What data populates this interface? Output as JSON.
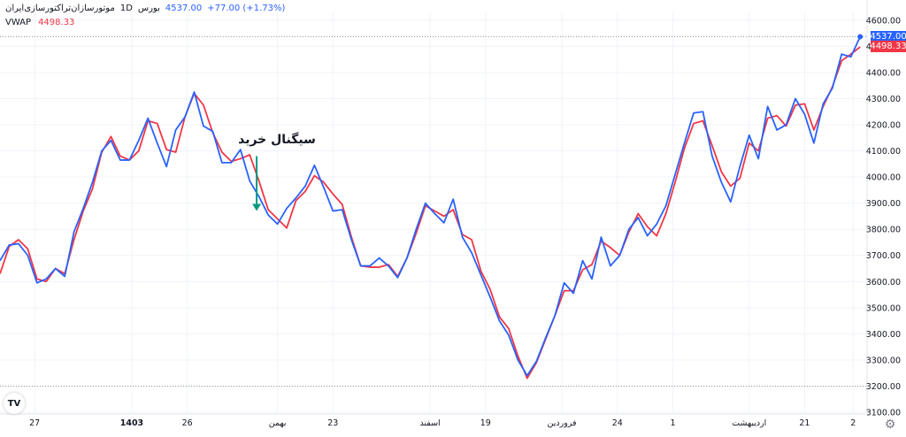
{
  "header": {
    "symbol_name": "موتورسازان‌تراکتورسازی‌ایران",
    "interval": "1D",
    "exchange": "بورس",
    "last_price": "4537.00",
    "change": "+77.00 (+1.73%)"
  },
  "indicator": {
    "label": "VWAP",
    "value": "4498.33"
  },
  "price_badge": "4537.00",
  "vwap_badge": "4498.33",
  "annotation": {
    "text": "سیگنال خرید",
    "x": 18.5,
    "y": 4080,
    "arrow_to_y": 3870
  },
  "colors": {
    "price": "#2962ff",
    "vwap": "#f23645",
    "annotation_arrow": "#089981"
  },
  "logo_text": "TV",
  "chart_data": {
    "type": "line",
    "x_tick_labels": [
      {
        "x": 2.5,
        "label": "27"
      },
      {
        "x": 9.5,
        "label": "1403"
      },
      {
        "x": 13.5,
        "label": "26"
      },
      {
        "x": 20,
        "label": "بهمن"
      },
      {
        "x": 24,
        "label": "23"
      },
      {
        "x": 31,
        "label": "اسفند"
      },
      {
        "x": 35,
        "label": "19"
      },
      {
        "x": 40.5,
        "label": "فروردین"
      },
      {
        "x": 44.5,
        "label": "24"
      },
      {
        "x": 48.5,
        "label": "1"
      },
      {
        "x": 54,
        "label": "اردیبهشت"
      },
      {
        "x": 58,
        "label": "21"
      },
      {
        "x": 61.5,
        "label": "2"
      }
    ],
    "y_ticks": [
      3100,
      3200,
      3300,
      3400,
      3500,
      3600,
      3700,
      3800,
      3900,
      4000,
      4100,
      4200,
      4300,
      4400,
      4500,
      4600
    ],
    "ylim": [
      3100,
      4630
    ],
    "xlim": [
      0,
      62.5
    ],
    "horizontal_lines": [
      3200,
      4537
    ],
    "series": [
      {
        "name": "",
        "color": "#2962ff",
        "values": [
          3680,
          3740,
          3745,
          3700,
          3595,
          3610,
          3650,
          3620,
          3790,
          3880,
          3980,
          4100,
          4140,
          4065,
          4065,
          4140,
          4225,
          4130,
          4040,
          4180,
          4230,
          4325,
          4195,
          4175,
          4055,
          4055,
          4105,
          3985,
          3925,
          3855,
          3820,
          3880,
          3920,
          3965,
          4045,
          3960,
          3870,
          3875,
          3760,
          3660,
          3660,
          3690,
          3660,
          3615,
          3690,
          3800,
          3900,
          3860,
          3825,
          3915,
          3770,
          3710,
          3625,
          3540,
          3450,
          3395,
          3300,
          3240,
          3295,
          3385,
          3470,
          3595,
          3555,
          3680,
          3610,
          3770,
          3660,
          3700,
          3800,
          3845,
          3775,
          3820,
          3890,
          4010,
          4130,
          4245,
          4250,
          4080,
          3980,
          3905,
          4040,
          4160,
          4070,
          4270,
          4180,
          4200,
          4300,
          4240,
          4130,
          4280,
          4340,
          4470,
          4460,
          4537
        ]
      },
      {
        "name": "",
        "color": "#f23645",
        "values": [
          3630,
          3735,
          3760,
          3725,
          3610,
          3600,
          3650,
          3630,
          3760,
          3870,
          3955,
          4095,
          4155,
          4080,
          4065,
          4100,
          4215,
          4205,
          4105,
          4095,
          4230,
          4320,
          4275,
          4170,
          4095,
          4060,
          4070,
          4085,
          3985,
          3875,
          3840,
          3805,
          3910,
          3945,
          4005,
          3980,
          3935,
          3895,
          3770,
          3660,
          3655,
          3655,
          3665,
          3620,
          3690,
          3785,
          3890,
          3870,
          3850,
          3875,
          3780,
          3760,
          3640,
          3570,
          3465,
          3420,
          3315,
          3230,
          3290,
          3380,
          3470,
          3565,
          3565,
          3645,
          3665,
          3755,
          3730,
          3700,
          3790,
          3860,
          3810,
          3775,
          3860,
          3980,
          4110,
          4205,
          4215,
          4120,
          4020,
          3965,
          3995,
          4130,
          4100,
          4225,
          4235,
          4195,
          4275,
          4280,
          4180,
          4270,
          4345,
          4445,
          4470,
          4498
        ]
      }
    ]
  }
}
